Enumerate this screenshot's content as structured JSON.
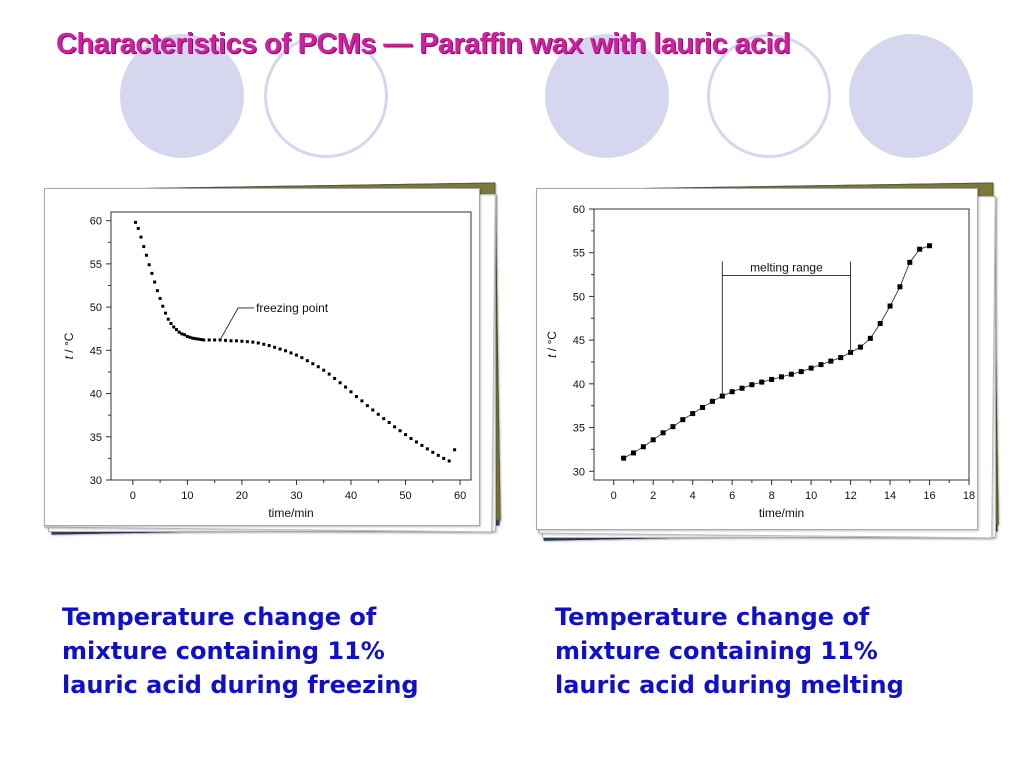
{
  "slide": {
    "title": "Characteristics of PCMs — Paraffin wax with lauric acid",
    "captions": [
      [
        "Temperature change of",
        "mixture containing 11%",
        "lauric acid during freezing"
      ],
      [
        "Temperature change of",
        "mixture containing 11%",
        "lauric acid during melting"
      ]
    ]
  },
  "chart_data": [
    {
      "type": "scatter",
      "xlabel": "time/min",
      "ylabel_italic": "t",
      "ylabel_rest": " / °C",
      "xlim": [
        -4,
        62
      ],
      "ylim": [
        30,
        61
      ],
      "xticks": [
        0,
        10,
        20,
        30,
        40,
        50,
        60
      ],
      "yticks": [
        30,
        35,
        40,
        45,
        50,
        55,
        60
      ],
      "annotation": {
        "text": "freezing point",
        "x": 16,
        "y": 46.2
      },
      "series": [
        {
          "marker": "square-small",
          "connect": false,
          "points": [
            [
              0.5,
              59.8
            ],
            [
              1,
              59.1
            ],
            [
              1.5,
              58.1
            ],
            [
              2,
              57.0
            ],
            [
              2.5,
              56.0
            ],
            [
              3,
              54.9
            ],
            [
              3.5,
              53.9
            ],
            [
              4,
              52.9
            ],
            [
              4.5,
              51.9
            ],
            [
              5,
              51.0
            ],
            [
              5.5,
              50.1
            ],
            [
              6,
              49.3
            ],
            [
              6.5,
              48.6
            ],
            [
              7,
              48.1
            ],
            [
              7.5,
              47.7
            ],
            [
              8,
              47.4
            ],
            [
              8.5,
              47.1
            ],
            [
              9,
              46.9
            ],
            [
              9.5,
              46.8
            ],
            [
              10,
              46.6
            ],
            [
              10.5,
              46.5
            ],
            [
              11,
              46.4
            ],
            [
              11.5,
              46.35
            ],
            [
              12,
              46.3
            ],
            [
              12.5,
              46.25
            ],
            [
              13,
              46.2
            ],
            [
              14,
              46.2
            ],
            [
              15,
              46.2
            ],
            [
              16,
              46.2
            ],
            [
              17,
              46.15
            ],
            [
              18,
              46.1
            ],
            [
              19,
              46.1
            ],
            [
              20,
              46.05
            ],
            [
              21,
              46.0
            ],
            [
              22,
              45.95
            ],
            [
              23,
              45.85
            ],
            [
              24,
              45.7
            ],
            [
              25,
              45.55
            ],
            [
              26,
              45.35
            ],
            [
              27,
              45.15
            ],
            [
              28,
              44.95
            ],
            [
              29,
              44.7
            ],
            [
              30,
              44.45
            ],
            [
              31,
              44.15
            ],
            [
              32,
              43.8
            ],
            [
              33,
              43.45
            ],
            [
              34,
              43.1
            ],
            [
              35,
              42.7
            ],
            [
              36,
              42.25
            ],
            [
              37,
              41.75
            ],
            [
              38,
              41.25
            ],
            [
              39,
              40.75
            ],
            [
              40,
              40.2
            ],
            [
              41,
              39.65
            ],
            [
              42,
              39.15
            ],
            [
              43,
              38.6
            ],
            [
              44,
              38.1
            ],
            [
              45,
              37.6
            ],
            [
              46,
              37.1
            ],
            [
              47,
              36.65
            ],
            [
              48,
              36.15
            ],
            [
              49,
              35.7
            ],
            [
              50,
              35.25
            ],
            [
              51,
              34.8
            ],
            [
              52,
              34.4
            ],
            [
              53,
              34.0
            ],
            [
              54,
              33.6
            ],
            [
              55,
              33.2
            ],
            [
              56,
              32.85
            ],
            [
              57,
              32.5
            ],
            [
              58,
              32.2
            ],
            [
              59,
              33.5
            ]
          ]
        }
      ]
    },
    {
      "type": "line",
      "xlabel": "time/min",
      "ylabel_italic": "t",
      "ylabel_rest": " / °C",
      "xlim": [
        -1,
        18
      ],
      "ylim": [
        29,
        60
      ],
      "xticks": [
        0,
        2,
        4,
        6,
        8,
        10,
        12,
        14,
        16,
        18
      ],
      "yticks": [
        30,
        35,
        40,
        45,
        50,
        55,
        60
      ],
      "annotation": {
        "text": "melting range",
        "x1": 5.5,
        "x2": 12,
        "y": 54,
        "y1": 38.6,
        "y2": 43.6
      },
      "series": [
        {
          "marker": "square",
          "connect": true,
          "points": [
            [
              0.5,
              31.5
            ],
            [
              1,
              32.1
            ],
            [
              1.5,
              32.8
            ],
            [
              2,
              33.6
            ],
            [
              2.5,
              34.4
            ],
            [
              3,
              35.1
            ],
            [
              3.5,
              35.9
            ],
            [
              4,
              36.6
            ],
            [
              4.5,
              37.3
            ],
            [
              5,
              38.0
            ],
            [
              5.5,
              38.6
            ],
            [
              6,
              39.1
            ],
            [
              6.5,
              39.5
            ],
            [
              7,
              39.9
            ],
            [
              7.5,
              40.2
            ],
            [
              8,
              40.5
            ],
            [
              8.5,
              40.8
            ],
            [
              9,
              41.1
            ],
            [
              9.5,
              41.4
            ],
            [
              10,
              41.8
            ],
            [
              10.5,
              42.2
            ],
            [
              11,
              42.6
            ],
            [
              11.5,
              43.0
            ],
            [
              12,
              43.6
            ],
            [
              12.5,
              44.2
            ],
            [
              13,
              45.2
            ],
            [
              13.5,
              46.9
            ],
            [
              14,
              48.9
            ],
            [
              14.5,
              51.1
            ],
            [
              15,
              53.9
            ],
            [
              15.5,
              55.4
            ],
            [
              16,
              55.8
            ]
          ]
        }
      ]
    }
  ]
}
